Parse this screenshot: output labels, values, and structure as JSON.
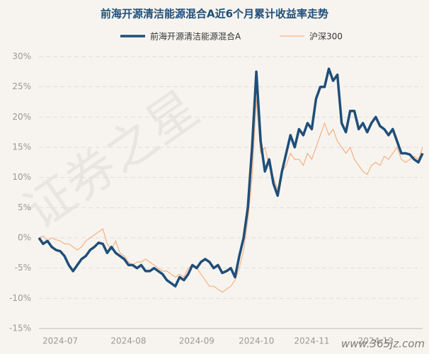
{
  "chart_data": {
    "type": "line",
    "title": "前海开源清洁能源混合A近6个月累计收益率走势",
    "watermark": "证券之星",
    "source_mark": "www.365jz.com",
    "categories": [
      null,
      null,
      null,
      null,
      null,
      "2024-07",
      null,
      null,
      null,
      null,
      null,
      null,
      null,
      null,
      null,
      null,
      null,
      null,
      null,
      null,
      null,
      "2024-08",
      null,
      null,
      null,
      null,
      null,
      null,
      null,
      null,
      null,
      null,
      null,
      null,
      null,
      null,
      null,
      "2024-09",
      null,
      null,
      null,
      null,
      null,
      null,
      null,
      null,
      null,
      null,
      null,
      null,
      null,
      "2024-10",
      null,
      null,
      null,
      null,
      null,
      null,
      null,
      null,
      null,
      null,
      null,
      null,
      "2024-11",
      null,
      null,
      null,
      null,
      null,
      null,
      null,
      null,
      null,
      null,
      null,
      null,
      null,
      null,
      "2024-12",
      null,
      null,
      null,
      null,
      null,
      null,
      null,
      null,
      null,
      null,
      null
    ],
    "series": [
      {
        "name": "前海开源清洁能源混合A",
        "color": "#1f4e79",
        "width": 3.5,
        "values": [
          0,
          -1,
          -0.5,
          -1.5,
          -2,
          -2.2,
          -3,
          -4.5,
          -5.5,
          -4.5,
          -3.5,
          -3,
          -2,
          -1.5,
          -0.8,
          -1,
          -2.5,
          -1.5,
          -2.5,
          -3,
          -3.5,
          -4.5,
          -4.5,
          -5,
          -4.5,
          -5.5,
          -5.5,
          -5,
          -5.5,
          -6,
          -7,
          -7.5,
          -8,
          -6.5,
          -7,
          -6,
          -4.5,
          -5,
          -4,
          -3.5,
          -4,
          -5,
          -4.5,
          -5.8,
          -5.5,
          -5,
          -6.5,
          -3,
          0,
          5,
          15,
          27.5,
          16,
          11,
          13,
          9,
          7,
          11,
          14,
          17,
          15,
          18,
          17,
          19,
          18,
          23,
          25,
          25,
          28,
          26,
          27,
          19,
          17.5,
          21,
          21,
          18,
          19,
          17.5,
          19,
          20,
          18.5,
          18,
          17,
          18,
          16,
          14,
          14,
          13.8,
          13,
          12.5,
          14
        ]
      },
      {
        "name": "沪深300",
        "color": "#f4b183",
        "width": 1.2,
        "values": [
          0,
          0.3,
          -0.5,
          0,
          -0.3,
          -0.5,
          -1,
          -1,
          -1.5,
          -2,
          -1.5,
          -0.5,
          0,
          0.5,
          1,
          1.5,
          -1,
          -2,
          -0.5,
          -2.5,
          -3,
          -4,
          -4.5,
          -4,
          -4,
          -3.5,
          -4,
          -4.5,
          -5,
          -5.5,
          -5.5,
          -6,
          -6.5,
          -6,
          -6.5,
          -5,
          -4.5,
          -5,
          -6,
          -7,
          -8,
          -8,
          -8.5,
          -9,
          -8.5,
          -8,
          -7,
          -5,
          -2,
          3,
          10,
          23,
          14,
          15,
          12,
          10,
          8,
          11,
          12,
          14,
          13,
          13,
          12,
          14,
          13,
          15,
          17,
          19,
          17,
          18,
          16,
          15,
          14,
          15,
          13,
          12,
          11,
          10.5,
          12,
          12.5,
          12,
          13.5,
          13,
          14,
          15,
          13,
          12.5,
          13,
          13.5,
          13,
          15
        ]
      }
    ],
    "ylim": [
      -15,
      30
    ],
    "yticks": [
      {
        "value": 30,
        "label": "30%"
      },
      {
        "value": 25,
        "label": "25%"
      },
      {
        "value": 20,
        "label": "20%"
      },
      {
        "value": 15,
        "label": "15%"
      },
      {
        "value": 10,
        "label": "10%"
      },
      {
        "value": 5,
        "label": "5%"
      },
      {
        "value": 0,
        "label": "0%"
      },
      {
        "value": -5,
        "label": "-5%"
      },
      {
        "value": -10,
        "label": "-10%"
      },
      {
        "value": -15,
        "label": "-15%"
      }
    ],
    "grid": true
  }
}
